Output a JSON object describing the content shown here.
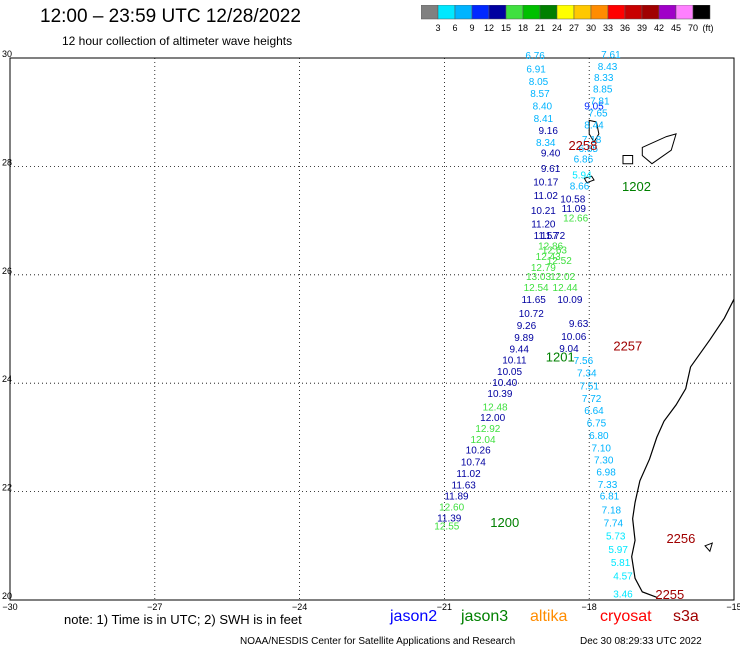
{
  "header": {
    "title": "12:00 – 23:59 UTC 12/28/2022",
    "subtitle": "12 hour collection of altimeter wave heights"
  },
  "colorbar": {
    "labels": [
      "3",
      "6",
      "9",
      "12",
      "15",
      "18",
      "21",
      "24",
      "27",
      "30",
      "33",
      "36",
      "39",
      "42",
      "45",
      "70"
    ],
    "unit": "(ft)",
    "colors": [
      "#808080",
      "#00e8ff",
      "#00b4ff",
      "#0028ff",
      "#0000a0",
      "#40e040",
      "#00c000",
      "#008000",
      "#ffff00",
      "#ffc800",
      "#ff8c00",
      "#ff0000",
      "#c80000",
      "#a00000",
      "#a000c8",
      "#ff80ff",
      "#000000"
    ]
  },
  "map": {
    "lat_range": [
      20,
      30
    ],
    "lon_range": [
      -30,
      -15
    ],
    "lat_ticks": [
      {
        "value": 20,
        "label": "20"
      },
      {
        "value": 22,
        "label": "22"
      },
      {
        "value": 24,
        "label": "24"
      },
      {
        "value": 26,
        "label": "26"
      },
      {
        "value": 28,
        "label": "28"
      },
      {
        "value": 30,
        "label": "30"
      }
    ],
    "lon_ticks": [
      {
        "value": -30,
        "label": "−30"
      },
      {
        "value": -27,
        "label": "−27"
      },
      {
        "value": -24,
        "label": "−24"
      },
      {
        "value": -21,
        "label": "−21"
      },
      {
        "value": -18,
        "label": "−18"
      },
      {
        "value": -15,
        "label": "−15"
      }
    ],
    "tracks": [
      {
        "satellite": "jason2",
        "points": [
          {
            "lat": 29.05,
            "lon": -17.9,
            "label": "9.05",
            "color": "#0028ff"
          },
          {
            "lat": 28.18,
            "lon": -18.8,
            "label": "9.40",
            "color": "#0000a0"
          },
          {
            "lat": 27.9,
            "lon": -18.8,
            "label": "9.61",
            "color": "#0000a0"
          },
          {
            "lat": 27.65,
            "lon": -18.9,
            "label": "10.17",
            "color": "#0000a0"
          },
          {
            "lat": 27.4,
            "lon": -18.9,
            "label": "11.02",
            "color": "#0000a0"
          },
          {
            "lat": 27.33,
            "lon": -18.34,
            "label": "10.58",
            "color": "#0000a0"
          },
          {
            "lat": 27.16,
            "lon": -18.32,
            "label": "11.09",
            "color": "#0000a0"
          },
          {
            "lat": 27.12,
            "lon": -18.95,
            "label": "10.21",
            "color": "#0000a0"
          },
          {
            "lat": 26.87,
            "lon": -18.95,
            "label": "11.20",
            "color": "#0000a0"
          },
          {
            "lat": 26.66,
            "lon": -18.75,
            "label": "11.72",
            "color": "#0000a0"
          },
          {
            "lat": 26.66,
            "lon": -18.9,
            "label": "11.57",
            "color": "#0000a0"
          },
          {
            "lat": 25.48,
            "lon": -19.15,
            "label": "11.65",
            "color": "#0000a0"
          },
          {
            "lat": 25.48,
            "lon": -18.4,
            "label": "10.09",
            "color": "#0000a0"
          },
          {
            "lat": 25.22,
            "lon": -19.2,
            "label": "10.72",
            "color": "#0000a0"
          },
          {
            "lat": 25.04,
            "lon": -18.22,
            "label": "9.63",
            "color": "#0000a0"
          },
          {
            "lat": 25.0,
            "lon": -19.3,
            "label": "9.26",
            "color": "#0000a0"
          },
          {
            "lat": 24.8,
            "lon": -18.32,
            "label": "10.06",
            "color": "#0000a0"
          },
          {
            "lat": 24.78,
            "lon": -19.35,
            "label": "9.89",
            "color": "#0000a0"
          },
          {
            "lat": 24.58,
            "lon": -18.42,
            "label": "9.04",
            "color": "#0000a0"
          },
          {
            "lat": 24.57,
            "lon": -19.45,
            "label": "9.44",
            "color": "#0000a0"
          },
          {
            "lat": 24.36,
            "lon": -19.55,
            "label": "10.11",
            "color": "#0000a0"
          },
          {
            "lat": 24.15,
            "lon": -19.65,
            "label": "10.05",
            "color": "#0000a0"
          },
          {
            "lat": 23.95,
            "lon": -19.75,
            "label": "10.40",
            "color": "#0000a0"
          },
          {
            "lat": 23.75,
            "lon": -19.85,
            "label": "10.39",
            "color": "#0000a0"
          },
          {
            "lat": 23.3,
            "lon": -20.0,
            "label": "12.00",
            "color": "#0000a0"
          },
          {
            "lat": 22.7,
            "lon": -20.3,
            "label": "10.26",
            "color": "#0000a0"
          },
          {
            "lat": 22.48,
            "lon": -20.4,
            "label": "10.74",
            "color": "#0000a0"
          },
          {
            "lat": 22.27,
            "lon": -20.5,
            "label": "11.02",
            "color": "#0000a0"
          },
          {
            "lat": 22.06,
            "lon": -20.6,
            "label": "11.63",
            "color": "#0000a0"
          },
          {
            "lat": 21.85,
            "lon": -20.75,
            "label": "11.89",
            "color": "#0000a0"
          },
          {
            "lat": 21.45,
            "lon": -20.9,
            "label": "11.39",
            "color": "#0000a0"
          }
        ]
      },
      {
        "satellite": "jason3",
        "points": [
          {
            "lat": 26.47,
            "lon": -18.8,
            "label": "12.86",
            "color": "#40e040"
          },
          {
            "lat": 26.39,
            "lon": -18.72,
            "label": "12.63",
            "color": "#40e040"
          },
          {
            "lat": 26.27,
            "lon": -18.85,
            "label": "12.43",
            "color": "#40e040"
          },
          {
            "lat": 26.2,
            "lon": -18.62,
            "label": "12.52",
            "color": "#40e040"
          },
          {
            "lat": 26.07,
            "lon": -18.95,
            "label": "12.79",
            "color": "#40e040"
          },
          {
            "lat": 25.9,
            "lon": -19.05,
            "label": "13.03",
            "color": "#40e040"
          },
          {
            "lat": 25.9,
            "lon": -18.55,
            "label": "12.02",
            "color": "#40e040"
          },
          {
            "lat": 25.7,
            "lon": -19.1,
            "label": "12.54",
            "color": "#40e040"
          },
          {
            "lat": 25.7,
            "lon": -18.5,
            "label": "12.44",
            "color": "#40e040"
          },
          {
            "lat": 26.98,
            "lon": -18.28,
            "label": "12.66",
            "color": "#40e040"
          },
          {
            "lat": 23.5,
            "lon": -19.95,
            "label": "12.48",
            "color": "#40e040"
          },
          {
            "lat": 23.1,
            "lon": -20.1,
            "label": "12.92",
            "color": "#40e040"
          },
          {
            "lat": 22.9,
            "lon": -20.2,
            "label": "12.04",
            "color": "#40e040"
          },
          {
            "lat": 21.65,
            "lon": -20.85,
            "label": "12.60",
            "color": "#40e040"
          },
          {
            "lat": 21.3,
            "lon": -20.95,
            "label": "12.55",
            "color": "#40e040"
          }
        ]
      },
      {
        "satellite": "cryosat",
        "points": [
          {
            "lat": 29.98,
            "lon": -19.12,
            "label": "6.76",
            "color": "#00b4ff"
          },
          {
            "lat": 29.73,
            "lon": -19.1,
            "label": "6.91",
            "color": "#00b4ff"
          },
          {
            "lat": 29.5,
            "lon": -19.05,
            "label": "8.05",
            "color": "#00b4ff"
          },
          {
            "lat": 29.28,
            "lon": -19.02,
            "label": "8.57",
            "color": "#00b4ff"
          },
          {
            "lat": 29.05,
            "lon": -18.97,
            "label": "8.40",
            "color": "#00b4ff"
          },
          {
            "lat": 28.82,
            "lon": -18.95,
            "label": "8.41",
            "color": "#00b4ff"
          },
          {
            "lat": 28.6,
            "lon": -18.85,
            "label": "9.16",
            "color": "#0000a0"
          },
          {
            "lat": 28.38,
            "lon": -18.9,
            "label": "8.34",
            "color": "#00b4ff"
          },
          {
            "lat": 30.0,
            "lon": -17.55,
            "label": "7.61",
            "color": "#00b4ff"
          },
          {
            "lat": 29.78,
            "lon": -17.62,
            "label": "8.43",
            "color": "#00b4ff"
          },
          {
            "lat": 29.58,
            "lon": -17.7,
            "label": "8.33",
            "color": "#00b4ff"
          },
          {
            "lat": 29.36,
            "lon": -17.72,
            "label": "8.85",
            "color": "#00b4ff"
          },
          {
            "lat": 29.14,
            "lon": -17.78,
            "label": "7.81",
            "color": "#00b4ff"
          },
          {
            "lat": 28.92,
            "lon": -17.82,
            "label": "7.65",
            "color": "#00b4ff"
          },
          {
            "lat": 28.7,
            "lon": -17.9,
            "label": "8.44",
            "color": "#00b4ff"
          },
          {
            "lat": 28.43,
            "lon": -17.95,
            "label": "7.18",
            "color": "#00b4ff"
          },
          {
            "lat": 28.27,
            "lon": -18.02,
            "label": "6.85",
            "color": "#00b4ff"
          },
          {
            "lat": 28.07,
            "lon": -18.12,
            "label": "6.86",
            "color": "#00b4ff"
          }
        ]
      },
      {
        "satellite": "s3a",
        "points": [
          {
            "lat": 27.78,
            "lon": -18.15,
            "label": "5.94",
            "color": "#00e8ff"
          },
          {
            "lat": 27.57,
            "lon": -18.2,
            "label": "8.66",
            "color": "#00b4ff"
          },
          {
            "lat": 24.35,
            "lon": -18.12,
            "label": "7.56",
            "color": "#00b4ff"
          },
          {
            "lat": 24.12,
            "lon": -18.05,
            "label": "7.34",
            "color": "#00b4ff"
          },
          {
            "lat": 23.88,
            "lon": -18.0,
            "label": "7.51",
            "color": "#00b4ff"
          },
          {
            "lat": 23.65,
            "lon": -17.95,
            "label": "7.72",
            "color": "#00b4ff"
          },
          {
            "lat": 23.43,
            "lon": -17.9,
            "label": "6.64",
            "color": "#00b4ff"
          },
          {
            "lat": 23.2,
            "lon": -17.85,
            "label": "6.75",
            "color": "#00b4ff"
          },
          {
            "lat": 22.97,
            "lon": -17.8,
            "label": "6.80",
            "color": "#00b4ff"
          },
          {
            "lat": 22.74,
            "lon": -17.75,
            "label": "7.10",
            "color": "#00b4ff"
          },
          {
            "lat": 22.52,
            "lon": -17.7,
            "label": "7.30",
            "color": "#00b4ff"
          },
          {
            "lat": 22.3,
            "lon": -17.65,
            "label": "6.98",
            "color": "#00b4ff"
          },
          {
            "lat": 22.07,
            "lon": -17.62,
            "label": "7.33",
            "color": "#00b4ff"
          },
          {
            "lat": 21.85,
            "lon": -17.58,
            "label": "6.81",
            "color": "#00b4ff"
          },
          {
            "lat": 21.6,
            "lon": -17.54,
            "label": "7.18",
            "color": "#00b4ff"
          },
          {
            "lat": 21.36,
            "lon": -17.5,
            "label": "7.74",
            "color": "#00b4ff"
          },
          {
            "lat": 21.12,
            "lon": -17.45,
            "label": "5.73",
            "color": "#00e8ff"
          },
          {
            "lat": 20.87,
            "lon": -17.4,
            "label": "5.97",
            "color": "#00e8ff"
          },
          {
            "lat": 20.63,
            "lon": -17.35,
            "label": "5.81",
            "color": "#00e8ff"
          },
          {
            "lat": 20.38,
            "lon": -17.3,
            "label": "4.57",
            "color": "#00e8ff"
          },
          {
            "lat": 20.05,
            "lon": -17.3,
            "label": "3.46",
            "color": "#00e8ff"
          }
        ]
      }
    ],
    "time_labels": [
      {
        "lat": 28.3,
        "lon": -18.13,
        "text": "2258",
        "color": "#a00000"
      },
      {
        "lat": 27.55,
        "lon": -17.02,
        "text": "1202",
        "color": "#008000"
      },
      {
        "lat": 24.6,
        "lon": -17.2,
        "text": "2257",
        "color": "#a00000"
      },
      {
        "lat": 24.4,
        "lon": -18.6,
        "text": "1201",
        "color": "#008000"
      },
      {
        "lat": 21.35,
        "lon": -19.75,
        "text": "1200",
        "color": "#008000"
      },
      {
        "lat": 21.05,
        "lon": -16.1,
        "text": "2256",
        "color": "#a00000"
      },
      {
        "lat": 20.02,
        "lon": -16.33,
        "text": "2255",
        "color": "#a00000"
      }
    ]
  },
  "footer": {
    "note": "note:  1) Time is in UTC;  2) SWH is in feet",
    "satellites": [
      {
        "name": "jason2",
        "color": "#0000ff"
      },
      {
        "name": "jason3",
        "color": "#008000"
      },
      {
        "name": "altika",
        "color": "#ff8c00"
      },
      {
        "name": "cryosat",
        "color": "#ff0000"
      },
      {
        "name": "s3a",
        "color": "#a00000"
      }
    ],
    "credit": "NOAA/NESDIS Center for Satellite Applications and Research",
    "datestamp": "Dec 30 08:29:33 UTC 2022"
  }
}
